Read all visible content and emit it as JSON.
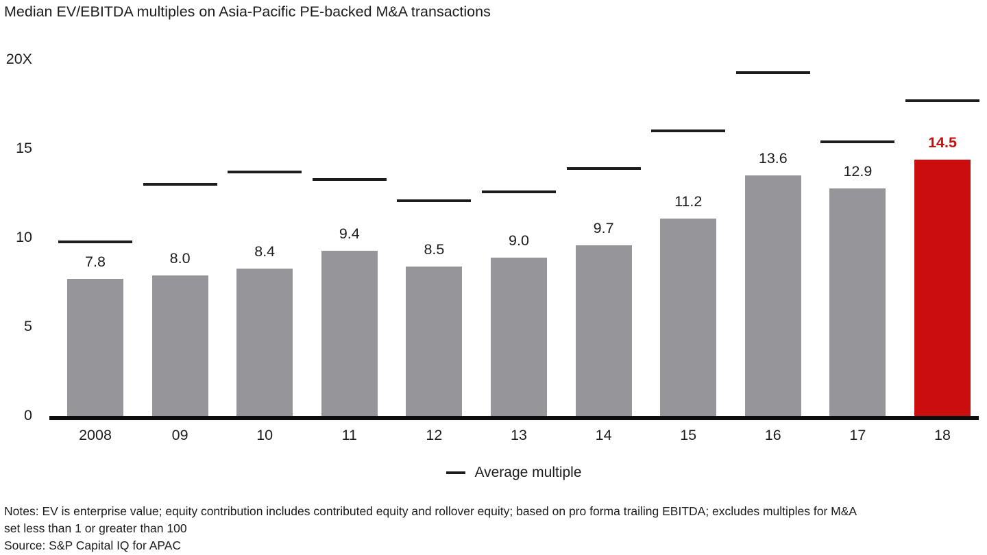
{
  "title": "Median EV/EBITDA multiples on Asia-Pacific PE-backed M&A transactions",
  "colors": {
    "bar": "#95959a",
    "highlight_bar": "#cc0d0d",
    "highlight_label": "#cc0d0d",
    "average_line": "#1d1d1b",
    "axis": "#0d0d0d",
    "text": "#1c1c1c"
  },
  "chart_data": {
    "type": "bar",
    "title": "Median EV/EBITDA multiples on Asia-Pacific PE-backed M&A transactions",
    "categories": [
      "2008",
      "09",
      "10",
      "11",
      "12",
      "13",
      "14",
      "15",
      "16",
      "17",
      "18"
    ],
    "series": [
      {
        "name": "Median multiple",
        "values": [
          7.8,
          8.0,
          8.4,
          9.4,
          8.5,
          9.0,
          9.7,
          11.2,
          13.6,
          12.9,
          14.5
        ],
        "value_labels": [
          "7.8",
          "8.0",
          "8.4",
          "9.4",
          "8.5",
          "9.0",
          "9.7",
          "11.2",
          "13.6",
          "12.9",
          "14.5"
        ]
      },
      {
        "name": "Average multiple",
        "values": [
          9.9,
          13.1,
          13.8,
          13.4,
          12.2,
          12.7,
          14.0,
          16.1,
          19.4,
          15.5,
          17.8
        ]
      }
    ],
    "highlight_category": "18",
    "highlight_index": 10,
    "ylim": [
      0,
      20
    ],
    "yticks": [
      0,
      5,
      10,
      15,
      20
    ],
    "ytick_labels": [
      "0",
      "5",
      "10",
      "15",
      "20X"
    ],
    "xlabel": "",
    "ylabel": "",
    "grid": false,
    "legend": [
      {
        "label": "Average multiple",
        "marker": "line"
      }
    ],
    "legend_position": "bottom-center"
  },
  "legend": {
    "average_label": "Average multiple"
  },
  "footer": {
    "notes_line1": "Notes: EV is enterprise value; equity contribution includes contributed equity and rollover equity; based on pro forma trailing EBITDA; excludes multiples for M&A",
    "notes_line2": "set less than 1 or greater than 100",
    "source": "Source: S&P Capital IQ for APAC"
  }
}
